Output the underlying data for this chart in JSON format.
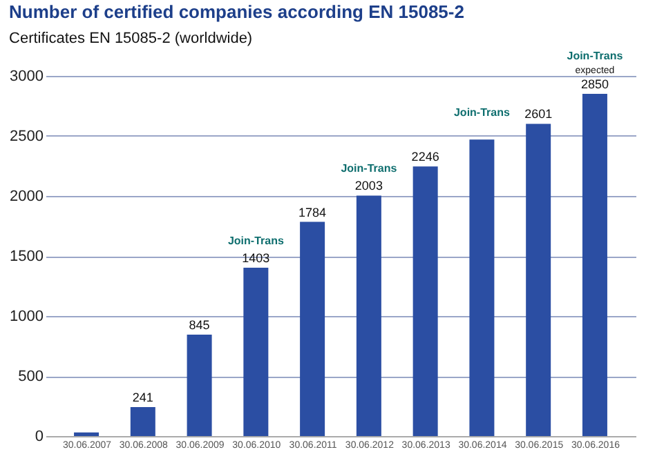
{
  "chart_data": {
    "type": "bar",
    "title": "Number of certified companies according EN 15085-2",
    "subtitle": "Certificates EN 15085-2 (worldwide)",
    "categories": [
      "30.06.2007",
      "30.06.2008",
      "30.06.2009",
      "30.06.2010",
      "30.06.2011",
      "30.06.2012",
      "30.06.2013",
      "30.06.2014",
      "30.06.2015",
      "30.06.2016"
    ],
    "values": [
      30,
      241,
      845,
      1403,
      1784,
      2003,
      2246,
      2470,
      2601,
      2850
    ],
    "value_labels": [
      null,
      "241",
      "845",
      "1403",
      "1784",
      "2003",
      "2246",
      null,
      "2601",
      "2850"
    ],
    "color": "#2b4ea3",
    "ylim": [
      0,
      3000
    ],
    "yticks": [
      0,
      500,
      1000,
      1500,
      2000,
      2500,
      3000
    ],
    "grid": "y",
    "annotations": [
      {
        "text": "Join-Trans",
        "x": "30.06.2010",
        "y": 1403
      },
      {
        "text": "Join-Trans",
        "x": "30.06.2012",
        "y": 2003
      },
      {
        "text": "Join-Trans",
        "x": "30.06.2014",
        "y": 2470
      },
      {
        "text": "Join-Trans",
        "x": "30.06.2016",
        "y": 2850
      },
      {
        "text": "expected",
        "x": "30.06.2016",
        "y": 2850
      }
    ]
  }
}
